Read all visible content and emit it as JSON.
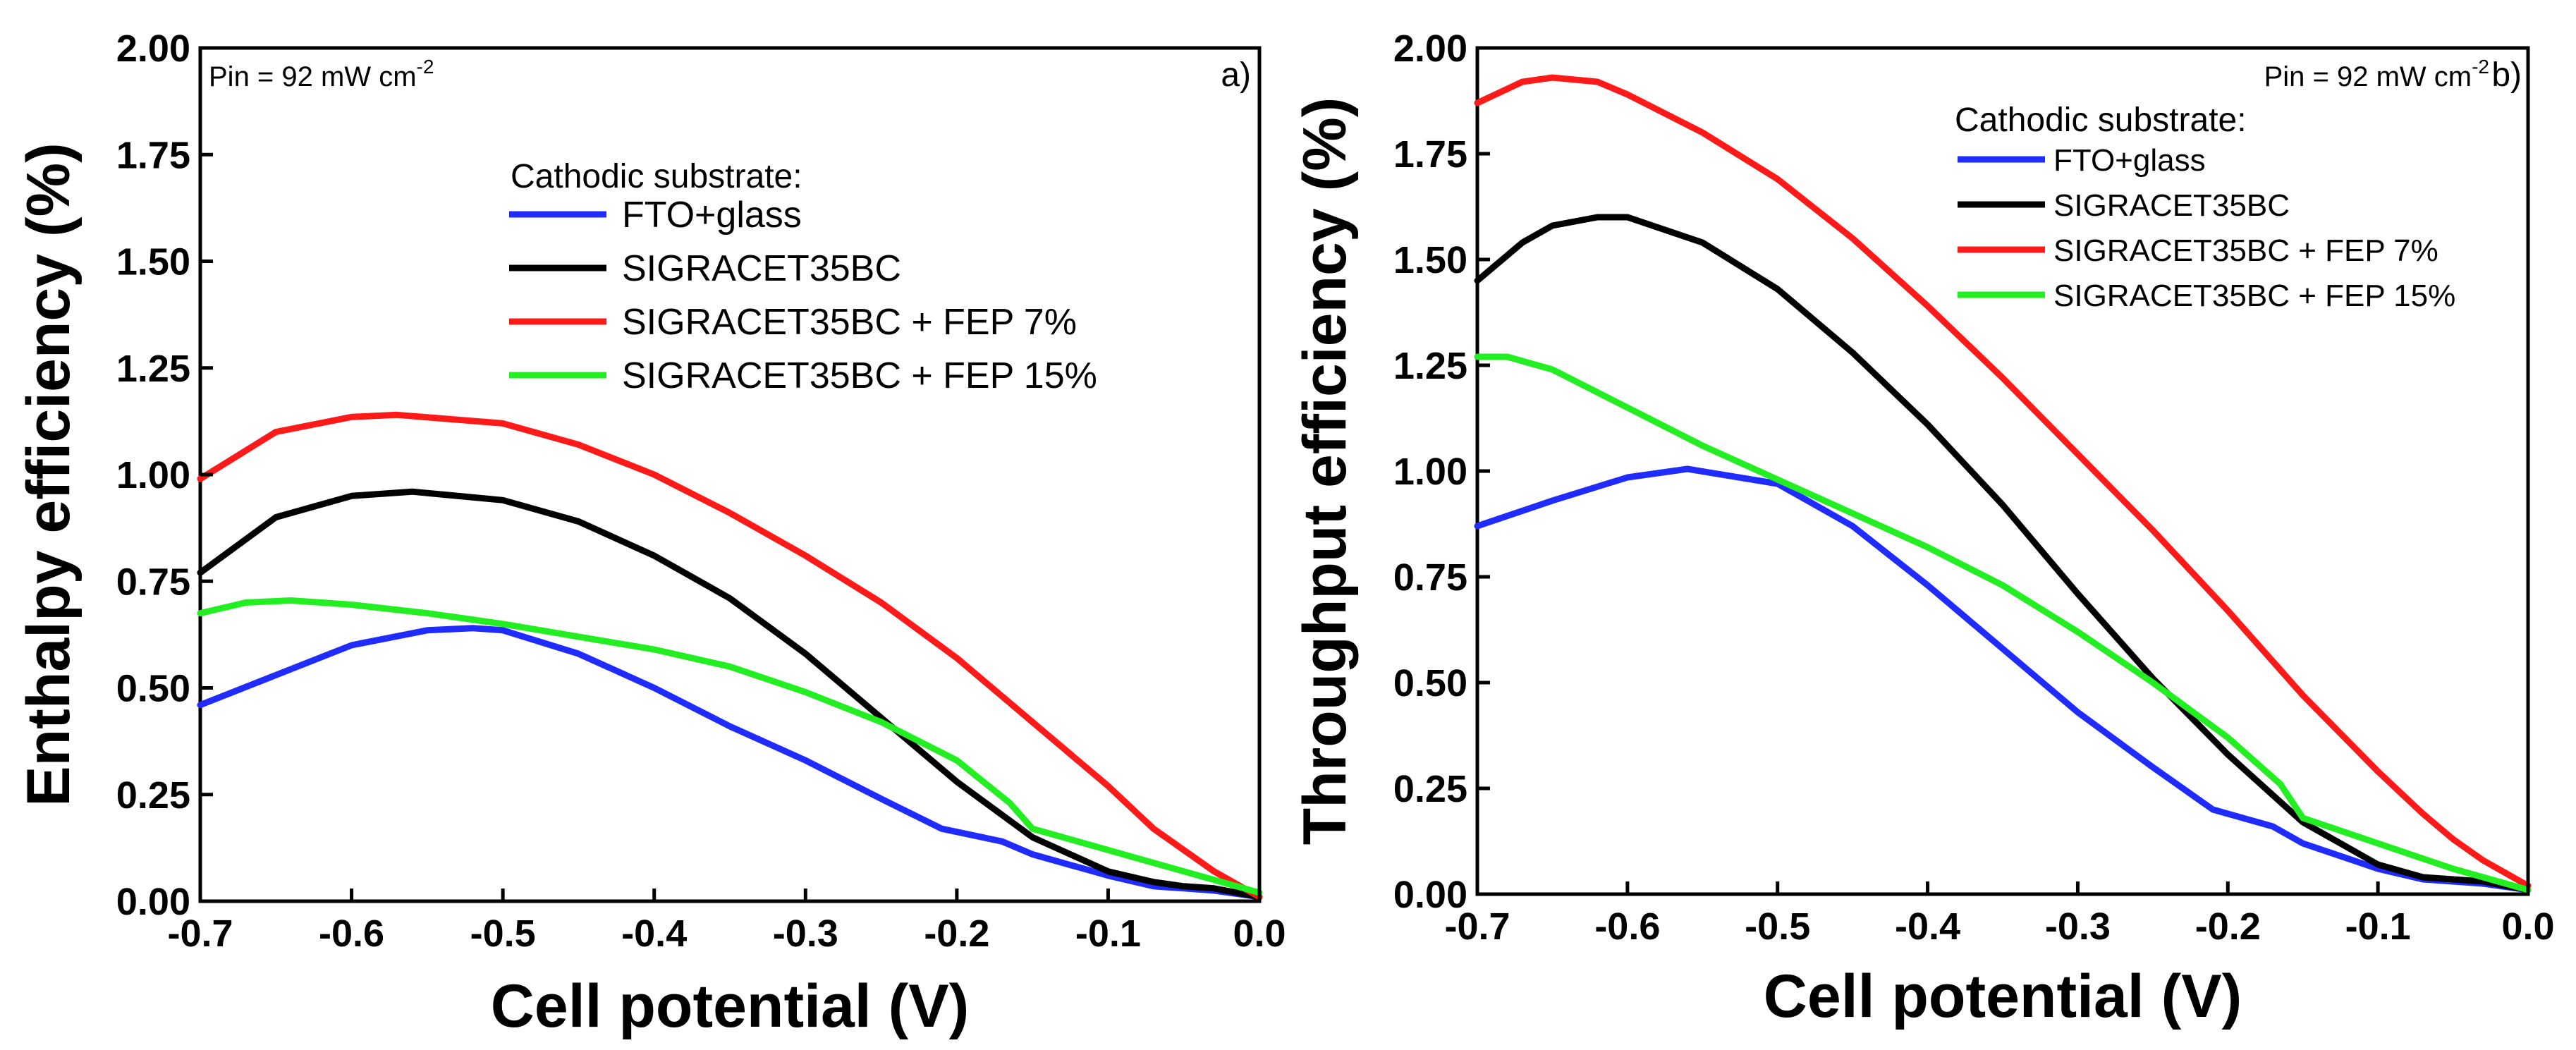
{
  "colors": {
    "fto_glass": "#1f2bff",
    "sigracet35bc": "#000000",
    "sigracet35bc_fep7": "#ff1a1a",
    "sigracet35bc_fep15": "#22ee22"
  },
  "chart_data": [
    {
      "type": "line",
      "panel_label": "a)",
      "annotation": "Pin = 92 mW cm",
      "annotation_sup": "-2",
      "xlabel": "Cell potential (V)",
      "ylabel": "Enthalpy efficiency (%)",
      "xlim": [
        -0.7,
        0.0
      ],
      "ylim": [
        0.0,
        2.0
      ],
      "x_ticks": [
        "-0.7",
        "-0.6",
        "-0.5",
        "-0.4",
        "-0.3",
        "-0.2",
        "-0.1",
        "0.0"
      ],
      "y_ticks": [
        "0.00",
        "0.25",
        "0.50",
        "0.75",
        "1.00",
        "1.25",
        "1.50",
        "1.75",
        "2.00"
      ],
      "legend_title": "Cathodic substrate:",
      "legend_placement": "upper-middle",
      "series": [
        {
          "name": "FTO+glass",
          "color_key": "fto_glass",
          "x": [
            -0.7,
            -0.65,
            -0.6,
            -0.55,
            -0.52,
            -0.5,
            -0.45,
            -0.4,
            -0.35,
            -0.3,
            -0.25,
            -0.21,
            -0.17,
            -0.15,
            -0.1,
            -0.07,
            -0.05,
            -0.03,
            0.0
          ],
          "y": [
            0.46,
            0.53,
            0.6,
            0.635,
            0.64,
            0.635,
            0.58,
            0.5,
            0.41,
            0.33,
            0.24,
            0.17,
            0.14,
            0.11,
            0.06,
            0.035,
            0.03,
            0.025,
            0.01
          ]
        },
        {
          "name": "SIGRACET35BC",
          "color_key": "sigracet35bc",
          "x": [
            -0.7,
            -0.65,
            -0.6,
            -0.56,
            -0.5,
            -0.45,
            -0.4,
            -0.35,
            -0.3,
            -0.25,
            -0.2,
            -0.15,
            -0.1,
            -0.07,
            -0.05,
            -0.03,
            0.0
          ],
          "y": [
            0.77,
            0.9,
            0.95,
            0.96,
            0.94,
            0.89,
            0.81,
            0.71,
            0.58,
            0.43,
            0.28,
            0.15,
            0.07,
            0.045,
            0.035,
            0.03,
            0.01
          ]
        },
        {
          "name": "SIGRACET35BC + FEP 7%",
          "color_key": "sigracet35bc_fep7",
          "x": [
            -0.7,
            -0.65,
            -0.6,
            -0.57,
            -0.5,
            -0.45,
            -0.4,
            -0.35,
            -0.3,
            -0.25,
            -0.2,
            -0.15,
            -0.1,
            -0.07,
            -0.05,
            -0.03,
            0.0
          ],
          "y": [
            0.99,
            1.1,
            1.135,
            1.14,
            1.12,
            1.07,
            1.0,
            0.91,
            0.81,
            0.7,
            0.57,
            0.42,
            0.27,
            0.17,
            0.12,
            0.07,
            0.01
          ]
        },
        {
          "name": "SIGRACET35BC + FEP 15%",
          "color_key": "sigracet35bc_fep15",
          "x": [
            -0.7,
            -0.67,
            -0.64,
            -0.6,
            -0.55,
            -0.5,
            -0.45,
            -0.4,
            -0.35,
            -0.3,
            -0.25,
            -0.2,
            -0.165,
            -0.15,
            -0.1,
            -0.05,
            0.0
          ],
          "y": [
            0.675,
            0.7,
            0.705,
            0.695,
            0.675,
            0.65,
            0.62,
            0.59,
            0.55,
            0.49,
            0.42,
            0.33,
            0.23,
            0.17,
            0.12,
            0.07,
            0.02
          ]
        }
      ]
    },
    {
      "type": "line",
      "panel_label": "b)",
      "annotation": "Pin = 92 mW cm",
      "annotation_sup": "-2",
      "xlabel": "Cell potential (V)",
      "ylabel": "Throughput efficiency (%)",
      "xlim": [
        -0.7,
        0.0
      ],
      "ylim": [
        0.0,
        2.0
      ],
      "x_ticks": [
        "-0.7",
        "-0.6",
        "-0.5",
        "-0.4",
        "-0.3",
        "-0.2",
        "-0.1",
        "0.0"
      ],
      "y_ticks": [
        "0.00",
        "0.25",
        "0.50",
        "0.75",
        "1.00",
        "1.25",
        "1.50",
        "1.75",
        "2.00"
      ],
      "legend_title": "Cathodic substrate:",
      "legend_placement": "top-right",
      "series": [
        {
          "name": "FTO+glass",
          "color_key": "fto_glass",
          "x": [
            -0.7,
            -0.65,
            -0.6,
            -0.56,
            -0.5,
            -0.45,
            -0.4,
            -0.35,
            -0.3,
            -0.25,
            -0.21,
            -0.17,
            -0.15,
            -0.1,
            -0.07,
            -0.05,
            -0.03,
            0.0
          ],
          "y": [
            0.87,
            0.93,
            0.985,
            1.005,
            0.97,
            0.87,
            0.73,
            0.58,
            0.43,
            0.3,
            0.2,
            0.16,
            0.12,
            0.06,
            0.035,
            0.03,
            0.025,
            0.01
          ]
        },
        {
          "name": "SIGRACET35BC",
          "color_key": "sigracet35bc",
          "x": [
            -0.7,
            -0.67,
            -0.65,
            -0.62,
            -0.6,
            -0.55,
            -0.5,
            -0.45,
            -0.4,
            -0.35,
            -0.3,
            -0.25,
            -0.2,
            -0.15,
            -0.1,
            -0.07,
            -0.05,
            -0.03,
            0.0
          ],
          "y": [
            1.45,
            1.54,
            1.58,
            1.6,
            1.6,
            1.54,
            1.43,
            1.28,
            1.11,
            0.92,
            0.71,
            0.51,
            0.33,
            0.17,
            0.07,
            0.04,
            0.035,
            0.03,
            0.01
          ]
        },
        {
          "name": "SIGRACET35BC + FEP 7%",
          "color_key": "sigracet35bc_fep7",
          "x": [
            -0.7,
            -0.67,
            -0.65,
            -0.62,
            -0.6,
            -0.55,
            -0.5,
            -0.45,
            -0.4,
            -0.35,
            -0.3,
            -0.25,
            -0.2,
            -0.15,
            -0.1,
            -0.07,
            -0.05,
            -0.03,
            0.0
          ],
          "y": [
            1.87,
            1.92,
            1.93,
            1.92,
            1.89,
            1.8,
            1.69,
            1.55,
            1.39,
            1.22,
            1.04,
            0.86,
            0.67,
            0.47,
            0.29,
            0.19,
            0.13,
            0.08,
            0.02
          ]
        },
        {
          "name": "SIGRACET35BC + FEP 15%",
          "color_key": "sigracet35bc_fep15",
          "x": [
            -0.7,
            -0.68,
            -0.65,
            -0.6,
            -0.55,
            -0.5,
            -0.45,
            -0.4,
            -0.35,
            -0.3,
            -0.25,
            -0.2,
            -0.165,
            -0.15,
            -0.1,
            -0.05,
            0.0
          ],
          "y": [
            1.27,
            1.27,
            1.24,
            1.15,
            1.06,
            0.98,
            0.9,
            0.82,
            0.73,
            0.62,
            0.5,
            0.37,
            0.26,
            0.18,
            0.12,
            0.06,
            0.01
          ]
        }
      ]
    }
  ]
}
